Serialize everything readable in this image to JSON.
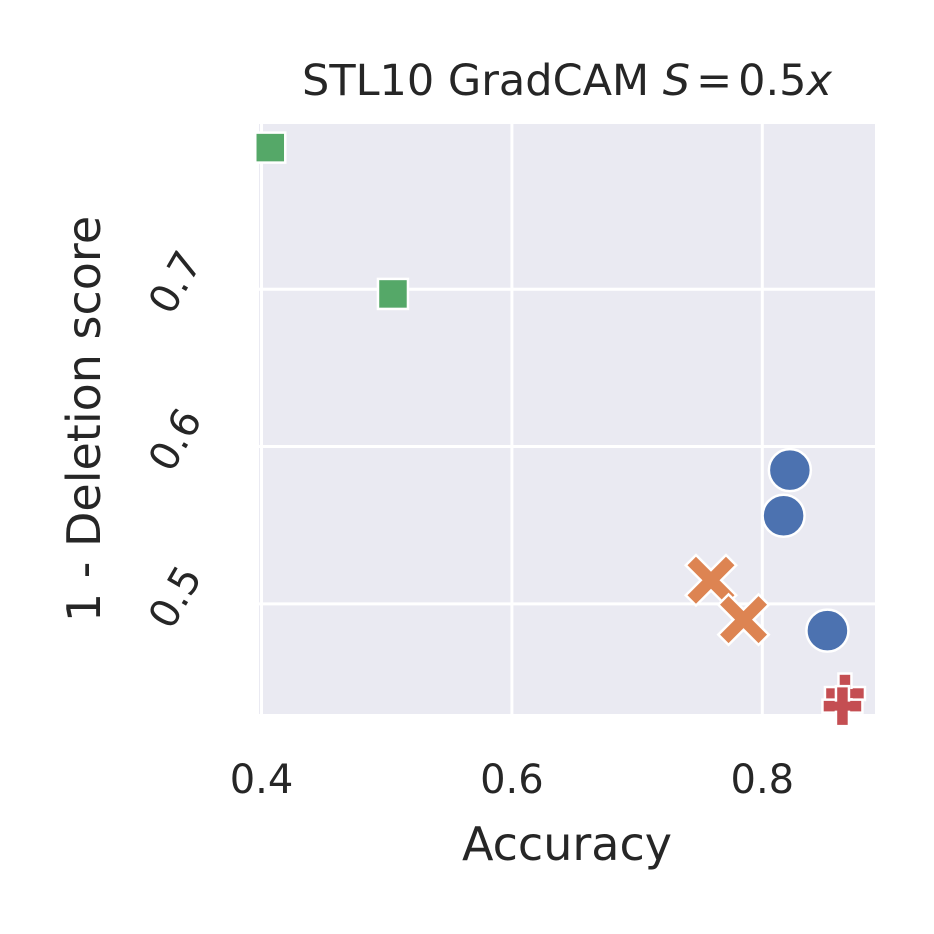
{
  "chart_data": {
    "type": "scatter",
    "title": "STL10 GradCAM",
    "title_math": {
      "lhs": "S",
      "op": "=",
      "rhs_num": "0.5",
      "rhs_var": "x"
    },
    "xlabel": "Accuracy",
    "ylabel": "1 - Deletion score",
    "xlim": [
      0.398,
      0.89
    ],
    "ylim": [
      0.43,
      0.805
    ],
    "xticks": [
      0.4,
      0.6,
      0.8
    ],
    "xtick_labels": [
      "0.4",
      "0.6",
      "0.8"
    ],
    "yticks": [
      0.5,
      0.6,
      0.7
    ],
    "ytick_labels": [
      "0.5",
      "0.6",
      "0.7"
    ],
    "grid": true,
    "background": "#EAEAF2",
    "legend": "none",
    "series": [
      {
        "marker": "circle",
        "color": "#4C72B0",
        "points": [
          {
            "x": 0.822,
            "y": 0.585
          },
          {
            "x": 0.817,
            "y": 0.556
          },
          {
            "x": 0.852,
            "y": 0.483
          }
        ]
      },
      {
        "marker": "x",
        "color": "#DD8452",
        "points": [
          {
            "x": 0.759,
            "y": 0.515
          },
          {
            "x": 0.785,
            "y": 0.49
          }
        ]
      },
      {
        "marker": "square",
        "color": "#55A868",
        "points": [
          {
            "x": 0.407,
            "y": 0.79
          },
          {
            "x": 0.505,
            "y": 0.697
          }
        ]
      },
      {
        "marker": "plus",
        "color": "#C44E52",
        "points": [
          {
            "x": 0.866,
            "y": 0.443
          },
          {
            "x": 0.864,
            "y": 0.435
          }
        ]
      }
    ]
  }
}
